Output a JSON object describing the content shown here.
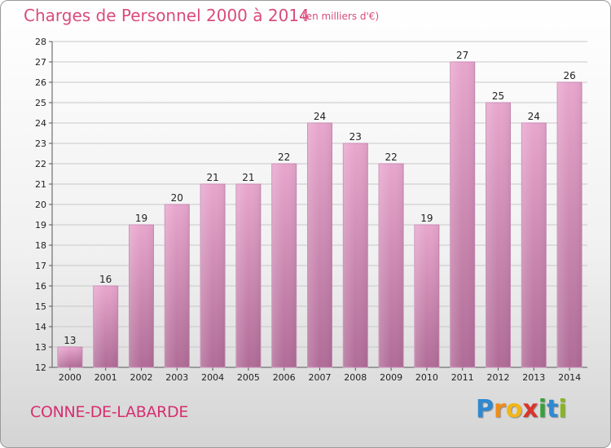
{
  "header": {
    "title": "Charges de Personnel 2000 à 2014",
    "subtitle": "(en milliers d'€)"
  },
  "footer": {
    "commune": "CONNE-DE-LABARDE",
    "logo_letters": [
      "P",
      "r",
      "o",
      "x",
      "i",
      "t",
      "i"
    ]
  },
  "colors": {
    "title": "#d94c7c",
    "bar_top": "#e8a6cd",
    "bar_bottom": "#b06c97",
    "logo": [
      "#2f88d0",
      "#ef8d1a",
      "#f2b61a",
      "#d9342c",
      "#3aa13a",
      "#2f88d0",
      "#86b81e"
    ]
  },
  "chart_data": {
    "type": "bar",
    "title": "Charges de Personnel 2000 à 2014",
    "subtitle": "(en milliers d'€)",
    "categories": [
      "2000",
      "2001",
      "2002",
      "2003",
      "2004",
      "2005",
      "2006",
      "2007",
      "2008",
      "2009",
      "2010",
      "2011",
      "2012",
      "2013",
      "2014"
    ],
    "values": [
      13,
      16,
      19,
      20,
      21,
      21,
      22,
      24,
      23,
      22,
      19,
      27,
      25,
      24,
      26
    ],
    "ylim": [
      12,
      28
    ],
    "yticks": [
      12,
      13,
      14,
      15,
      16,
      17,
      18,
      19,
      20,
      21,
      22,
      23,
      24,
      25,
      26,
      27,
      28
    ],
    "grid": true,
    "xlabel": "",
    "ylabel": ""
  }
}
